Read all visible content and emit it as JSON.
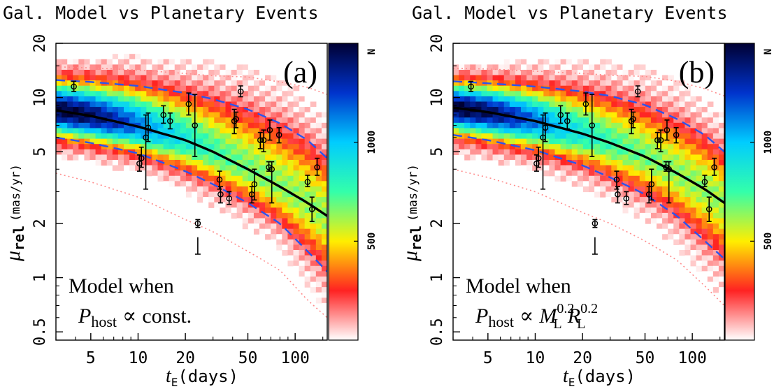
{
  "chart_data": [
    {
      "type": "heatmap",
      "title": "Gal. Model vs Planetary Events",
      "panel_label": "(a)",
      "annotation": {
        "line1": "Model when",
        "formula_prefix": "P",
        "formula_sub": "host",
        "formula_op": "∝",
        "formula_rest": "const.",
        "formula_terms": []
      },
      "xlabel": {
        "main": "t",
        "sub": "E",
        "rest": "(days)"
      },
      "ylabel": {
        "main": "μ",
        "sub": "rel",
        "rest": "(mas/yr)"
      },
      "x_scale": "log",
      "y_scale": "log",
      "xlim": [
        3.0,
        160
      ],
      "ylim": [
        0.45,
        20
      ],
      "xticks": [
        5,
        10,
        20,
        50,
        100
      ],
      "xtick_labels": [
        "5",
        "10",
        "20",
        "50",
        "100"
      ],
      "yticks": [
        0.5,
        1,
        2,
        5,
        10,
        20
      ],
      "ytick_labels": [
        "0.5",
        "1",
        "2",
        "5",
        "10",
        "20"
      ],
      "colorbar": {
        "label": "N",
        "ticks": [
          500,
          1000
        ],
        "tick_labels": [
          "500",
          "1000"
        ],
        "range": [
          0,
          1500
        ],
        "colors": [
          "#ffffff",
          "#ff2222",
          "#ffee00",
          "#33ffaa",
          "#00ccff",
          "#0033cc",
          "#000033"
        ]
      },
      "median_curve": {
        "x": [
          3.0,
          5,
          10,
          20,
          30,
          50,
          80,
          120,
          160
        ],
        "y": [
          8.5,
          7.9,
          6.9,
          5.8,
          5.0,
          4.0,
          3.2,
          2.6,
          2.2
        ]
      },
      "inner_band": {
        "upper": {
          "x": [
            3.0,
            5,
            10,
            20,
            30,
            50,
            80,
            120,
            160
          ],
          "y": [
            12.5,
            12.2,
            11.6,
            10.6,
            9.8,
            8.6,
            7.2,
            5.8,
            4.6
          ]
        },
        "lower": {
          "x": [
            3.0,
            5,
            10,
            20,
            30,
            50,
            80,
            120,
            160
          ],
          "y": [
            6.0,
            5.6,
            4.9,
            3.9,
            3.3,
            2.6,
            2.0,
            1.4,
            1.08
          ]
        }
      },
      "outer_band": {
        "upper": {
          "x": [
            3.0,
            5,
            10,
            20,
            30,
            50,
            80,
            120,
            160
          ],
          "y": [
            14.8,
            14.6,
            14.2,
            13.6,
            13.2,
            13.0,
            12.2,
            11.4,
            10.4
          ]
        },
        "lower": {
          "x": [
            3.0,
            5,
            10,
            20,
            30,
            50,
            80,
            120,
            160
          ],
          "y": [
            3.8,
            3.4,
            2.8,
            2.1,
            1.8,
            1.4,
            1.1,
            0.75,
            0.6
          ]
        }
      },
      "events": [
        {
          "x": 3.9,
          "y": 11.5,
          "ylo": 10.8,
          "yhi": 12.3
        },
        {
          "x": 10.2,
          "y": 4.3,
          "ylo": 3.9,
          "yhi": 4.8
        },
        {
          "x": 10.5,
          "y": 4.6,
          "ylo": 4.1,
          "yhi": 5.3
        },
        {
          "x": 11.2,
          "y": 6.0,
          "ylo": 3.1,
          "yhi": 8.0
        },
        {
          "x": 11.6,
          "y": 6.8,
          "ylo": 5.7,
          "yhi": 8.2
        },
        {
          "x": 14.5,
          "y": 8.0,
          "ylo": 7.2,
          "yhi": 9.0
        },
        {
          "x": 16.0,
          "y": 7.4,
          "ylo": 6.7,
          "yhi": 8.2
        },
        {
          "x": 21.0,
          "y": 9.2,
          "ylo": 8.0,
          "yhi": 10.6
        },
        {
          "x": 23.0,
          "y": 7.0,
          "ylo": 4.7,
          "yhi": 10.4
        },
        {
          "x": 24.0,
          "y": 2.0,
          "ylo": 1.9,
          "yhi": 2.1,
          "upper_limit": true,
          "limit_y": 1.35
        },
        {
          "x": 33.0,
          "y": 3.5,
          "ylo": 3.1,
          "yhi": 3.9
        },
        {
          "x": 33.5,
          "y": 2.9,
          "ylo": 2.6,
          "yhi": 3.2
        },
        {
          "x": 38.0,
          "y": 2.75,
          "ylo": 2.55,
          "yhi": 3.0
        },
        {
          "x": 41.0,
          "y": 7.4,
          "ylo": 6.3,
          "yhi": 8.6
        },
        {
          "x": 42.0,
          "y": 7.6,
          "ylo": 6.8,
          "yhi": 8.3
        },
        {
          "x": 45.0,
          "y": 10.8,
          "ylo": 10.1,
          "yhi": 11.6
        },
        {
          "x": 53.0,
          "y": 2.9,
          "ylo": 2.6,
          "yhi": 3.2
        },
        {
          "x": 55.0,
          "y": 3.3,
          "ylo": 2.7,
          "yhi": 4.0
        },
        {
          "x": 60.0,
          "y": 5.8,
          "ylo": 5.2,
          "yhi": 6.4
        },
        {
          "x": 63.0,
          "y": 5.8,
          "ylo": 5.0,
          "yhi": 6.6
        },
        {
          "x": 68.0,
          "y": 4.1,
          "ylo": 3.9,
          "yhi": 4.4
        },
        {
          "x": 69.0,
          "y": 6.6,
          "ylo": 5.8,
          "yhi": 7.5
        },
        {
          "x": 71.0,
          "y": 4.0,
          "ylo": 2.6,
          "yhi": 4.4
        },
        {
          "x": 79.0,
          "y": 6.2,
          "ylo": 5.6,
          "yhi": 6.8
        },
        {
          "x": 120.0,
          "y": 3.4,
          "ylo": 3.2,
          "yhi": 3.7
        },
        {
          "x": 128.0,
          "y": 2.4,
          "ylo": 2.05,
          "yhi": 2.8
        },
        {
          "x": 138.0,
          "y": 4.1,
          "ylo": 3.7,
          "yhi": 4.6
        }
      ]
    },
    {
      "type": "heatmap",
      "title": "Gal. Model vs Planetary Events",
      "panel_label": "(b)",
      "annotation": {
        "line1": "Model when",
        "formula_prefix": "P",
        "formula_sub": "host",
        "formula_op": "∝",
        "formula_rest": "",
        "formula_terms": [
          {
            "base": "M",
            "sub": "L",
            "sup": "0.2"
          },
          {
            "base": "R",
            "sub": "L",
            "sup": "0.2"
          }
        ]
      },
      "xlabel": {
        "main": "t",
        "sub": "E",
        "rest": "(days)"
      },
      "ylabel": {
        "main": "μ",
        "sub": "rel",
        "rest": "(mas/yr)"
      },
      "x_scale": "log",
      "y_scale": "log",
      "xlim": [
        3.0,
        160
      ],
      "ylim": [
        0.45,
        20
      ],
      "xticks": [
        5,
        10,
        20,
        50,
        100
      ],
      "xtick_labels": [
        "5",
        "10",
        "20",
        "50",
        "100"
      ],
      "yticks": [
        0.5,
        1,
        2,
        5,
        10,
        20
      ],
      "ytick_labels": [
        "0.5",
        "1",
        "2",
        "5",
        "10",
        "20"
      ],
      "colorbar": {
        "label": "N",
        "ticks": [
          500,
          1000
        ],
        "tick_labels": [
          "500",
          "1000"
        ],
        "range": [
          0,
          1500
        ],
        "colors": [
          "#ffffff",
          "#ff2222",
          "#ffee00",
          "#33ffaa",
          "#00ccff",
          "#0033cc",
          "#000033"
        ]
      },
      "median_curve": {
        "x": [
          3.0,
          5,
          10,
          20,
          30,
          50,
          80,
          120,
          160
        ],
        "y": [
          8.8,
          8.3,
          7.4,
          6.3,
          5.6,
          4.7,
          3.8,
          3.1,
          2.6
        ]
      },
      "inner_band": {
        "upper": {
          "x": [
            3.0,
            5,
            10,
            20,
            30,
            50,
            80,
            120,
            160
          ],
          "y": [
            12.3,
            12.0,
            11.5,
            10.8,
            10.2,
            9.1,
            7.6,
            6.2,
            5.0
          ]
        },
        "lower": {
          "x": [
            3.0,
            5,
            10,
            20,
            30,
            50,
            80,
            120,
            160
          ],
          "y": [
            6.2,
            5.8,
            5.1,
            4.2,
            3.6,
            2.9,
            2.2,
            1.6,
            1.27
          ]
        }
      },
      "outer_band": {
        "upper": {
          "x": [
            3.0,
            5,
            10,
            20,
            30,
            50,
            80,
            120,
            160
          ],
          "y": [
            14.5,
            14.4,
            14.0,
            13.6,
            13.3,
            13.1,
            12.3,
            11.2,
            10.2
          ]
        },
        "lower": {
          "x": [
            3.0,
            5,
            10,
            20,
            30,
            50,
            80,
            120,
            160
          ],
          "y": [
            4.0,
            3.6,
            3.0,
            2.3,
            2.0,
            1.6,
            1.25,
            0.9,
            0.7
          ]
        }
      },
      "events": [
        {
          "x": 3.9,
          "y": 11.5,
          "ylo": 10.8,
          "yhi": 12.3
        },
        {
          "x": 10.2,
          "y": 4.3,
          "ylo": 3.9,
          "yhi": 4.8
        },
        {
          "x": 10.5,
          "y": 4.6,
          "ylo": 4.1,
          "yhi": 5.3
        },
        {
          "x": 11.2,
          "y": 6.0,
          "ylo": 3.1,
          "yhi": 8.0
        },
        {
          "x": 11.6,
          "y": 6.8,
          "ylo": 5.7,
          "yhi": 8.2
        },
        {
          "x": 14.5,
          "y": 8.0,
          "ylo": 7.2,
          "yhi": 9.0
        },
        {
          "x": 16.0,
          "y": 7.4,
          "ylo": 6.7,
          "yhi": 8.2
        },
        {
          "x": 21.0,
          "y": 9.2,
          "ylo": 8.0,
          "yhi": 10.6
        },
        {
          "x": 23.0,
          "y": 7.0,
          "ylo": 4.7,
          "yhi": 10.4
        },
        {
          "x": 24.0,
          "y": 2.0,
          "ylo": 1.9,
          "yhi": 2.1,
          "upper_limit": true,
          "limit_y": 1.35
        },
        {
          "x": 33.0,
          "y": 3.5,
          "ylo": 3.1,
          "yhi": 3.9
        },
        {
          "x": 33.5,
          "y": 2.9,
          "ylo": 2.6,
          "yhi": 3.2
        },
        {
          "x": 38.0,
          "y": 2.75,
          "ylo": 2.55,
          "yhi": 3.0
        },
        {
          "x": 41.0,
          "y": 7.4,
          "ylo": 6.3,
          "yhi": 8.6
        },
        {
          "x": 42.0,
          "y": 7.6,
          "ylo": 6.8,
          "yhi": 8.3
        },
        {
          "x": 45.0,
          "y": 10.8,
          "ylo": 10.1,
          "yhi": 11.6
        },
        {
          "x": 53.0,
          "y": 2.9,
          "ylo": 2.6,
          "yhi": 3.2
        },
        {
          "x": 55.0,
          "y": 3.3,
          "ylo": 2.7,
          "yhi": 4.0
        },
        {
          "x": 60.0,
          "y": 5.8,
          "ylo": 5.2,
          "yhi": 6.4
        },
        {
          "x": 63.0,
          "y": 5.8,
          "ylo": 5.0,
          "yhi": 6.6
        },
        {
          "x": 68.0,
          "y": 4.1,
          "ylo": 3.9,
          "yhi": 4.4
        },
        {
          "x": 69.0,
          "y": 6.6,
          "ylo": 5.8,
          "yhi": 7.5
        },
        {
          "x": 71.0,
          "y": 4.0,
          "ylo": 2.6,
          "yhi": 4.4
        },
        {
          "x": 79.0,
          "y": 6.2,
          "ylo": 5.6,
          "yhi": 6.8
        },
        {
          "x": 120.0,
          "y": 3.4,
          "ylo": 3.2,
          "yhi": 3.7
        },
        {
          "x": 128.0,
          "y": 2.4,
          "ylo": 2.05,
          "yhi": 2.8
        },
        {
          "x": 138.0,
          "y": 4.1,
          "ylo": 3.7,
          "yhi": 4.6
        }
      ]
    }
  ]
}
